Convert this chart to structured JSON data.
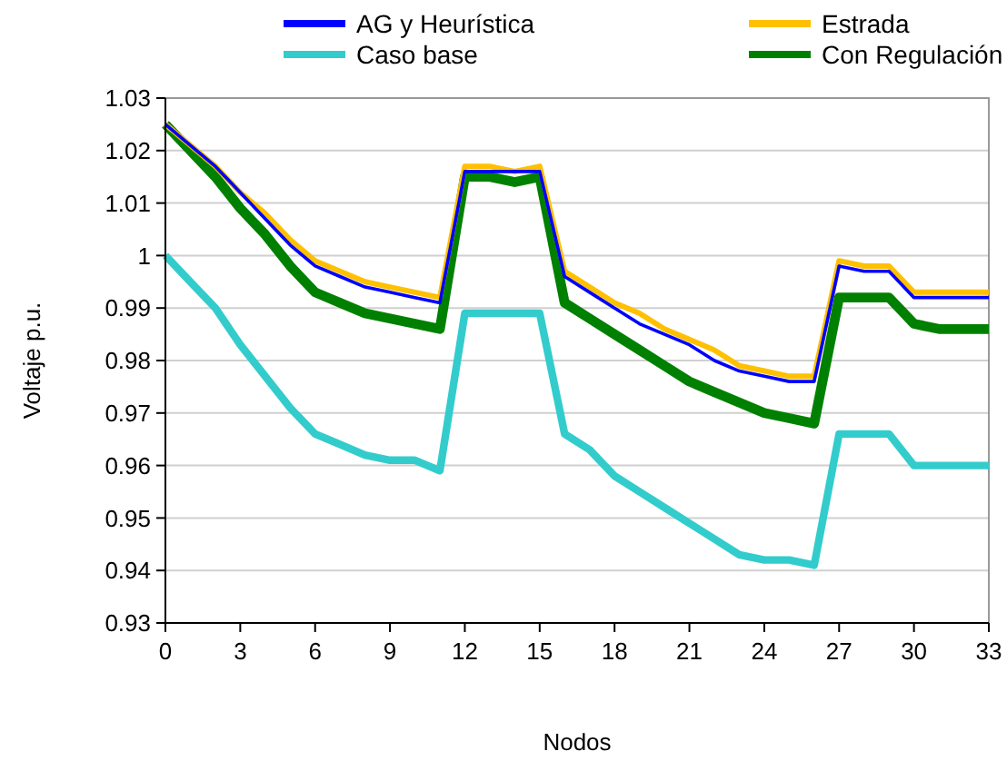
{
  "chart_data": {
    "type": "line",
    "xlabel": "Nodos",
    "ylabel": "Voltaje p.u.",
    "x": [
      0,
      1,
      2,
      3,
      4,
      5,
      6,
      7,
      8,
      9,
      10,
      11,
      12,
      13,
      14,
      15,
      16,
      17,
      18,
      19,
      20,
      21,
      22,
      23,
      24,
      25,
      26,
      27,
      28,
      29,
      30,
      31,
      32,
      33
    ],
    "series": [
      {
        "name": "AG y Heurística",
        "color": "#0000ff",
        "values": [
          1.025,
          1.021,
          1.017,
          1.012,
          1.007,
          1.002,
          0.998,
          0.996,
          0.994,
          0.993,
          0.992,
          0.991,
          1.016,
          1.016,
          1.016,
          1.016,
          0.996,
          0.993,
          0.99,
          0.987,
          0.985,
          0.983,
          0.98,
          0.978,
          0.977,
          0.976,
          0.976,
          0.998,
          0.997,
          0.997,
          0.992,
          0.992,
          0.992,
          0.992
        ]
      },
      {
        "name": "Estrada",
        "color": "#ffc000",
        "values": [
          1.025,
          1.021,
          1.017,
          1.012,
          1.008,
          1.003,
          0.999,
          0.997,
          0.995,
          0.994,
          0.993,
          0.992,
          1.017,
          1.017,
          1.016,
          1.017,
          0.997,
          0.994,
          0.991,
          0.989,
          0.986,
          0.984,
          0.982,
          0.979,
          0.978,
          0.977,
          0.977,
          0.999,
          0.998,
          0.998,
          0.993,
          0.993,
          0.993,
          0.993
        ]
      },
      {
        "name": "Caso base",
        "color": "#33cccc",
        "values": [
          1.0,
          0.995,
          0.99,
          0.983,
          0.977,
          0.971,
          0.966,
          0.964,
          0.962,
          0.961,
          0.961,
          0.959,
          0.989,
          0.989,
          0.989,
          0.989,
          0.966,
          0.963,
          0.958,
          0.955,
          0.952,
          0.949,
          0.946,
          0.943,
          0.942,
          0.942,
          0.941,
          0.966,
          0.966,
          0.966,
          0.96,
          0.96,
          0.96,
          0.96
        ]
      },
      {
        "name": "Con Regulación",
        "color": "#008000",
        "values": [
          1.025,
          1.02,
          1.015,
          1.009,
          1.004,
          0.998,
          0.993,
          0.991,
          0.989,
          0.988,
          0.987,
          0.986,
          1.015,
          1.015,
          1.014,
          1.015,
          0.991,
          0.988,
          0.985,
          0.982,
          0.979,
          0.976,
          0.974,
          0.972,
          0.97,
          0.969,
          0.968,
          0.992,
          0.992,
          0.992,
          0.987,
          0.986,
          0.986,
          0.986
        ]
      }
    ],
    "xlim": [
      0,
      33
    ],
    "xticks": [
      0,
      3,
      6,
      9,
      12,
      15,
      18,
      21,
      24,
      27,
      30,
      33
    ],
    "ylim": [
      0.93,
      1.03
    ],
    "yticks": [
      0.93,
      0.94,
      0.95,
      0.96,
      0.97,
      0.98,
      0.99,
      1,
      1.01,
      1.02,
      1.03
    ],
    "grid": "y",
    "legend": "top",
    "marker": "none",
    "line_style": "solid"
  }
}
